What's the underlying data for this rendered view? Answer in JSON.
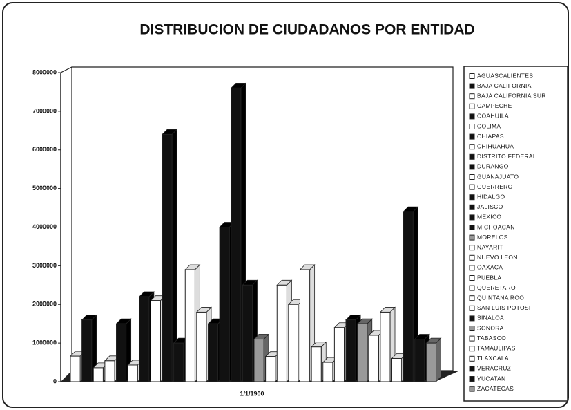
{
  "chart_data": {
    "type": "bar3d",
    "title": "DISTRIBUCION DE CIUDADANOS POR ENTIDAD",
    "categories": [
      "1/1/1900"
    ],
    "ylim": [
      0,
      8000000
    ],
    "yticks": [
      0,
      1000000,
      2000000,
      3000000,
      4000000,
      5000000,
      6000000,
      7000000,
      8000000
    ],
    "legend": "right",
    "series": [
      {
        "name": "AGUASCALIENTES",
        "color": "#ffffff",
        "values": [
          660000
        ]
      },
      {
        "name": "BAJA CALIFORNIA",
        "color": "#111111",
        "values": [
          1600000
        ]
      },
      {
        "name": "BAJA CALIFORNIA SUR",
        "color": "#ffffff",
        "values": [
          360000
        ]
      },
      {
        "name": "CAMPECHE",
        "color": "#ffffff",
        "values": [
          540000
        ]
      },
      {
        "name": "COAHUILA",
        "color": "#111111",
        "values": [
          1500000
        ]
      },
      {
        "name": "COLIMA",
        "color": "#ffffff",
        "values": [
          430000
        ]
      },
      {
        "name": "CHIAPAS",
        "color": "#111111",
        "values": [
          2200000
        ]
      },
      {
        "name": "CHIHUAHUA",
        "color": "#ffffff",
        "values": [
          2100000
        ]
      },
      {
        "name": "DISTRITO FEDERAL",
        "color": "#111111",
        "values": [
          6400000
        ]
      },
      {
        "name": "DURANGO",
        "color": "#111111",
        "values": [
          1000000
        ]
      },
      {
        "name": "GUANAJUATO",
        "color": "#ffffff",
        "values": [
          2900000
        ]
      },
      {
        "name": "GUERRERO",
        "color": "#ffffff",
        "values": [
          1800000
        ]
      },
      {
        "name": "HIDALGO",
        "color": "#111111",
        "values": [
          1500000
        ]
      },
      {
        "name": "JALISCO",
        "color": "#111111",
        "values": [
          4000000
        ]
      },
      {
        "name": "MEXICO",
        "color": "#111111",
        "values": [
          7600000
        ]
      },
      {
        "name": "MICHOACAN",
        "color": "#111111",
        "values": [
          2500000
        ]
      },
      {
        "name": "MORELOS",
        "color": "#999999",
        "values": [
          1100000
        ]
      },
      {
        "name": "NAYARIT",
        "color": "#ffffff",
        "values": [
          650000
        ]
      },
      {
        "name": "NUEVO LEON",
        "color": "#ffffff",
        "values": [
          2500000
        ]
      },
      {
        "name": "OAXACA",
        "color": "#ffffff",
        "values": [
          2000000
        ]
      },
      {
        "name": "PUEBLA",
        "color": "#ffffff",
        "values": [
          2900000
        ]
      },
      {
        "name": "QUERETARO",
        "color": "#ffffff",
        "values": [
          900000
        ]
      },
      {
        "name": "QUINTANA ROO",
        "color": "#ffffff",
        "values": [
          500000
        ]
      },
      {
        "name": "SAN LUIS POTOSI",
        "color": "#ffffff",
        "values": [
          1400000
        ]
      },
      {
        "name": "SINALOA",
        "color": "#111111",
        "values": [
          1600000
        ]
      },
      {
        "name": "SONORA",
        "color": "#999999",
        "values": [
          1500000
        ]
      },
      {
        "name": "TABASCO",
        "color": "#ffffff",
        "values": [
          1200000
        ]
      },
      {
        "name": "TAMAULIPAS",
        "color": "#ffffff",
        "values": [
          1800000
        ]
      },
      {
        "name": "TLAXCALA",
        "color": "#ffffff",
        "values": [
          600000
        ]
      },
      {
        "name": "VERACRUZ",
        "color": "#111111",
        "values": [
          4400000
        ]
      },
      {
        "name": "YUCATAN",
        "color": "#111111",
        "values": [
          1100000
        ]
      },
      {
        "name": "ZACATECAS",
        "color": "#999999",
        "values": [
          1000000
        ]
      }
    ]
  }
}
